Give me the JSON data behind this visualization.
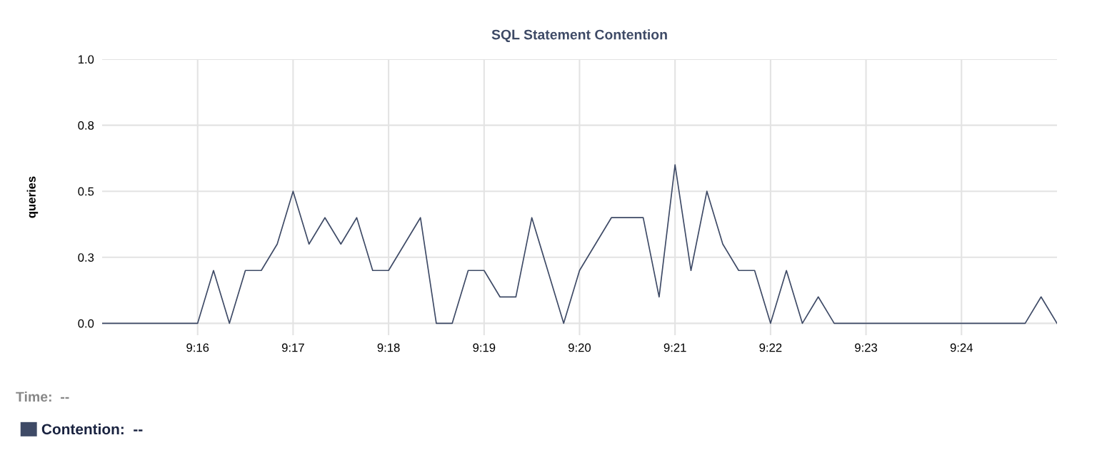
{
  "chart_data": {
    "type": "line",
    "title": "SQL Statement Contention",
    "ylabel": "queries",
    "x": [
      9.25,
      9.25278,
      9.25556,
      9.25833,
      9.26111,
      9.26389,
      9.26667,
      9.26944,
      9.27222,
      9.275,
      9.27778,
      9.28056,
      9.28333,
      9.28611,
      9.28889,
      9.29167,
      9.29444,
      9.29722,
      9.3,
      9.30278,
      9.30556,
      9.30833,
      9.31111,
      9.31389,
      9.31667,
      9.31944,
      9.32222,
      9.325,
      9.32778,
      9.33056,
      9.33333,
      9.33611,
      9.33889,
      9.34167,
      9.34444,
      9.34722,
      9.35,
      9.35278,
      9.35556,
      9.35833,
      9.36111,
      9.36389,
      9.36667,
      9.36944,
      9.37222,
      9.375,
      9.37778,
      9.38056,
      9.38333,
      9.38611,
      9.38889,
      9.39167,
      9.39444,
      9.39722,
      9.4,
      9.40278,
      9.40556,
      9.40833,
      9.41111,
      9.41389,
      9.41667
    ],
    "series": [
      {
        "name": "Contention:  --",
        "color": "#3e4a66",
        "values": [
          0,
          0,
          0,
          0,
          0,
          0,
          0,
          0.2,
          0,
          0.2,
          0.2,
          0.3,
          0.5,
          0.3,
          0.4,
          0.3,
          0.4,
          0.2,
          0.2,
          0.3,
          0.4,
          0,
          0,
          0.2,
          0.2,
          0.1,
          0.1,
          0.4,
          0.2,
          0,
          0.2,
          0.3,
          0.4,
          0.4,
          0.4,
          0.1,
          0.6,
          0.2,
          0.5,
          0.3,
          0.2,
          0.2,
          0,
          0.2,
          0,
          0.1,
          0,
          0,
          0,
          0,
          0,
          0,
          0,
          0,
          0,
          0,
          0,
          0,
          0,
          0.1,
          0
        ]
      }
    ],
    "xlim": [
      9.25,
      9.41667
    ],
    "xticks": [
      {
        "value": 9.26667,
        "label": "9:16"
      },
      {
        "value": 9.28333,
        "label": "9:17"
      },
      {
        "value": 9.3,
        "label": "9:18"
      },
      {
        "value": 9.31667,
        "label": "9:19"
      },
      {
        "value": 9.33333,
        "label": "9:20"
      },
      {
        "value": 9.35,
        "label": "9:21"
      },
      {
        "value": 9.36667,
        "label": "9:22"
      },
      {
        "value": 9.38333,
        "label": "9:23"
      },
      {
        "value": 9.4,
        "label": "9:24"
      }
    ],
    "ylim": [
      -0.045,
      1
    ],
    "yticks": [
      {
        "value": 0,
        "label": "0.0"
      },
      {
        "value": 0.25,
        "label": "0.3"
      },
      {
        "value": 0.5,
        "label": "0.5"
      },
      {
        "value": 0.75,
        "label": "0.8"
      },
      {
        "value": 1,
        "label": "1.0"
      }
    ],
    "grid": true,
    "legend": "bottom left",
    "marker": "none",
    "line_style": "solid",
    "annotations": [
      "Time:  --"
    ]
  }
}
